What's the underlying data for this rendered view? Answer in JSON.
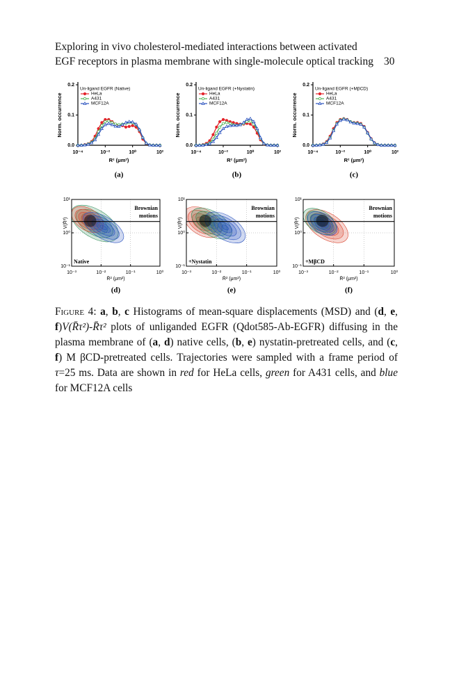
{
  "header": {
    "lines": [
      "Exploring in vivo cholesterol-mediated interactions between activated",
      "EGF receptors in plasma membrane with single-molecule optical tracking"
    ],
    "page_number": "30"
  },
  "chart_data": [
    {
      "type": "line",
      "title": "Un-ligand EGFR (Native)",
      "panel_label": "(a)",
      "x_label": "R² (μm²)",
      "y_label": "Norm. occurrence",
      "log_x": true,
      "x": [
        0.0001,
        0.00018,
        0.00032,
        0.00056,
        0.001,
        0.0018,
        0.0032,
        0.0056,
        0.01,
        0.018,
        0.032,
        0.056,
        0.1,
        0.18,
        0.32,
        0.56,
        1,
        1.8,
        3.2,
        5.6,
        10,
        18,
        32,
        56,
        100
      ],
      "xlim": [
        0.0001,
        100
      ],
      "xticks": [
        {
          "value": 0.0001,
          "label": "10⁻⁴"
        },
        {
          "value": 0.01,
          "label": "10⁻²"
        },
        {
          "value": 1,
          "label": "10⁰"
        },
        {
          "value": 100,
          "label": "10²"
        }
      ],
      "ylim": [
        0,
        0.2
      ],
      "yticks": [
        {
          "value": 0,
          "label": "0.0"
        },
        0.1,
        0.2
      ],
      "series": [
        {
          "name": "HeLa",
          "color": "#e3242b",
          "marker": "dot",
          "values": [
            0,
            0,
            0.002,
            0.005,
            0.012,
            0.03,
            0.055,
            0.075,
            0.085,
            0.085,
            0.078,
            0.07,
            0.065,
            0.065,
            0.06,
            0.062,
            0.065,
            0.06,
            0.045,
            0.02,
            0.005,
            0.001,
            0,
            0,
            0
          ]
        },
        {
          "name": "A431",
          "color": "#4caf50",
          "marker": "circle",
          "values": [
            0,
            0,
            0.001,
            0.004,
            0.01,
            0.022,
            0.045,
            0.065,
            0.078,
            0.08,
            0.075,
            0.07,
            0.068,
            0.07,
            0.072,
            0.075,
            0.074,
            0.068,
            0.05,
            0.025,
            0.006,
            0.001,
            0,
            0,
            0
          ]
        },
        {
          "name": "MCF12A",
          "color": "#2a52be",
          "marker": "triangle",
          "values": [
            0,
            0,
            0.001,
            0.003,
            0.008,
            0.018,
            0.036,
            0.055,
            0.068,
            0.072,
            0.068,
            0.063,
            0.062,
            0.068,
            0.075,
            0.078,
            0.077,
            0.07,
            0.052,
            0.026,
            0.007,
            0.001,
            0,
            0,
            0
          ]
        }
      ]
    },
    {
      "type": "line",
      "title": "Un-ligand EGFR (+Nystatin)",
      "panel_label": "(b)",
      "x_label": "R² (μm²)",
      "y_label": "Norm. occurrence",
      "log_x": true,
      "x": [
        0.0001,
        0.00018,
        0.00032,
        0.00056,
        0.001,
        0.0018,
        0.0032,
        0.0056,
        0.01,
        0.018,
        0.032,
        0.056,
        0.1,
        0.18,
        0.32,
        0.56,
        1,
        1.8,
        3.2,
        5.6,
        10,
        18,
        32,
        56,
        100
      ],
      "xlim": [
        0.0001,
        100
      ],
      "xticks": [
        {
          "value": 0.0001,
          "label": "10⁻⁴"
        },
        {
          "value": 0.01,
          "label": "10⁻²"
        },
        {
          "value": 1,
          "label": "10⁰"
        },
        {
          "value": 100,
          "label": "10²"
        }
      ],
      "ylim": [
        0,
        0.2
      ],
      "yticks": [
        {
          "value": 0,
          "label": "0.0"
        },
        0.1,
        0.2
      ],
      "series": [
        {
          "name": "HeLa",
          "color": "#e3242b",
          "marker": "dot",
          "values": [
            0,
            0,
            0.002,
            0.006,
            0.015,
            0.035,
            0.06,
            0.078,
            0.085,
            0.082,
            0.078,
            0.075,
            0.072,
            0.07,
            0.07,
            0.072,
            0.07,
            0.06,
            0.04,
            0.018,
            0.004,
            0.001,
            0,
            0,
            0
          ]
        },
        {
          "name": "A431",
          "color": "#4caf50",
          "marker": "circle",
          "values": [
            0,
            0,
            0.001,
            0.003,
            0.008,
            0.02,
            0.04,
            0.06,
            0.072,
            0.075,
            0.072,
            0.068,
            0.066,
            0.068,
            0.072,
            0.078,
            0.08,
            0.07,
            0.05,
            0.022,
            0.005,
            0.001,
            0,
            0,
            0
          ]
        },
        {
          "name": "MCF12A",
          "color": "#2a52be",
          "marker": "triangle",
          "values": [
            0,
            0,
            0,
            0.002,
            0.005,
            0.012,
            0.025,
            0.042,
            0.055,
            0.062,
            0.065,
            0.066,
            0.066,
            0.068,
            0.075,
            0.085,
            0.088,
            0.078,
            0.055,
            0.025,
            0.006,
            0.001,
            0,
            0,
            0
          ]
        }
      ]
    },
    {
      "type": "line",
      "title": "Un-ligand EGFR (+MβCD)",
      "panel_label": "(c)",
      "x_label": "R² (μm²)",
      "y_label": "Norm. occurrence",
      "log_x": true,
      "x": [
        0.0001,
        0.00018,
        0.00032,
        0.00056,
        0.001,
        0.0018,
        0.0032,
        0.0056,
        0.01,
        0.018,
        0.032,
        0.056,
        0.1,
        0.18,
        0.32,
        0.56,
        1,
        1.8,
        3.2,
        5.6,
        10,
        18,
        32,
        56,
        100
      ],
      "xlim": [
        0.0001,
        100
      ],
      "xticks": [
        {
          "value": 0.0001,
          "label": "10⁻⁴"
        },
        {
          "value": 0.01,
          "label": "10⁻²"
        },
        {
          "value": 1,
          "label": "10⁰"
        },
        {
          "value": 100,
          "label": "10²"
        }
      ],
      "ylim": [
        0,
        0.2
      ],
      "yticks": [
        {
          "value": 0,
          "label": "0.0"
        },
        0.1,
        0.2
      ],
      "series": [
        {
          "name": "HeLa",
          "color": "#e3242b",
          "marker": "dot",
          "values": [
            0,
            0,
            0.001,
            0.004,
            0.012,
            0.03,
            0.055,
            0.075,
            0.085,
            0.088,
            0.085,
            0.078,
            0.075,
            0.075,
            0.072,
            0.062,
            0.042,
            0.022,
            0.008,
            0.002,
            0,
            0,
            0,
            0,
            0
          ]
        },
        {
          "name": "A431",
          "color": "#4caf50",
          "marker": "circle",
          "values": [
            0,
            0,
            0.001,
            0.003,
            0.01,
            0.026,
            0.05,
            0.072,
            0.083,
            0.087,
            0.084,
            0.078,
            0.074,
            0.073,
            0.07,
            0.06,
            0.04,
            0.02,
            0.007,
            0.002,
            0,
            0,
            0,
            0,
            0
          ]
        },
        {
          "name": "MCF12A",
          "color": "#2a52be",
          "marker": "triangle",
          "values": [
            0,
            0,
            0.001,
            0.003,
            0.009,
            0.024,
            0.048,
            0.07,
            0.082,
            0.086,
            0.084,
            0.077,
            0.073,
            0.072,
            0.069,
            0.06,
            0.041,
            0.021,
            0.008,
            0.002,
            0,
            0,
            0,
            0,
            0
          ]
        }
      ]
    },
    {
      "type": "contour",
      "panel_label": "(d)",
      "condition": "Native",
      "annotation": [
        "Brownian",
        "motions"
      ],
      "x_label": "R̄² (μm²)",
      "y_label": "V(R̄²)",
      "log_x": true,
      "log_y": true,
      "xlim": [
        0.001,
        1
      ],
      "xticks": [
        {
          "value": 0.001,
          "label": "10⁻³"
        },
        {
          "value": 0.01,
          "label": "10⁻²"
        },
        {
          "value": 0.1,
          "label": "10⁻¹"
        },
        {
          "value": 1,
          "label": "10⁰"
        }
      ],
      "ylim": [
        0.1,
        10
      ],
      "yticks": [
        {
          "value": 0.1,
          "label": "10⁻¹"
        },
        {
          "value": 1,
          "label": "10⁰"
        },
        {
          "value": 10,
          "label": "10¹"
        }
      ],
      "grid": true
    },
    {
      "type": "contour",
      "panel_label": "(e)",
      "condition": "+Nystatin",
      "annotation": [
        "Brownian",
        "motions"
      ],
      "x_label": "R̄² (μm²)",
      "y_label": "V(R̄²)",
      "log_x": true,
      "log_y": true,
      "xlim": [
        0.001,
        1
      ],
      "xticks": [
        {
          "value": 0.001,
          "label": "10⁻³"
        },
        {
          "value": 0.01,
          "label": "10⁻²"
        },
        {
          "value": 0.1,
          "label": "10⁻¹"
        },
        {
          "value": 1,
          "label": "10⁰"
        }
      ],
      "ylim": [
        0.1,
        10
      ],
      "yticks": [
        {
          "value": 0.1,
          "label": "10⁻¹"
        },
        {
          "value": 1,
          "label": "10⁰"
        },
        {
          "value": 10,
          "label": "10¹"
        }
      ],
      "grid": true
    },
    {
      "type": "contour",
      "panel_label": "(f)",
      "condition": "+MβCD",
      "annotation": [
        "Brownian",
        "motions"
      ],
      "x_label": "R̄² (μm²)",
      "y_label": "V(R̄²)",
      "log_x": true,
      "log_y": true,
      "xlim": [
        0.001,
        1
      ],
      "xticks": [
        {
          "value": 0.001,
          "label": "10⁻³"
        },
        {
          "value": 0.01,
          "label": "10⁻²"
        },
        {
          "value": 0.1,
          "label": "10⁻¹"
        },
        {
          "value": 1,
          "label": "10⁰"
        }
      ],
      "ylim": [
        0.1,
        10
      ],
      "yticks": [
        {
          "value": 0.1,
          "label": "10⁻¹"
        },
        {
          "value": 1,
          "label": "10⁰"
        },
        {
          "value": 10,
          "label": "10¹"
        }
      ],
      "grid": true
    }
  ],
  "caption": {
    "parts": [
      "Figure 4: ",
      "a",
      ", ",
      "b",
      ", ",
      "c",
      " Histograms of mean-square displacements (MSD) and (",
      "d",
      ", ",
      "e",
      ", ",
      "f",
      ")",
      "V(R̄τ²)-R̄τ²",
      " plots of unliganded EGFR (Qdot585-Ab-EGFR) diffusing in the plasma membrane of (",
      "a",
      ", ",
      "d",
      ") native cells, (",
      "b",
      ", ",
      "e",
      ") nystatin-pretreated cells, and (",
      "c",
      ", ",
      "f",
      ") M βCD-pretreated cells. Trajectories were sampled with a frame period of ",
      "τ",
      "=25 ms. Data are shown in ",
      "red",
      " for HeLa cells, ",
      "green",
      " for A431 cells, and ",
      "blue",
      " for MCF12A cells"
    ]
  }
}
